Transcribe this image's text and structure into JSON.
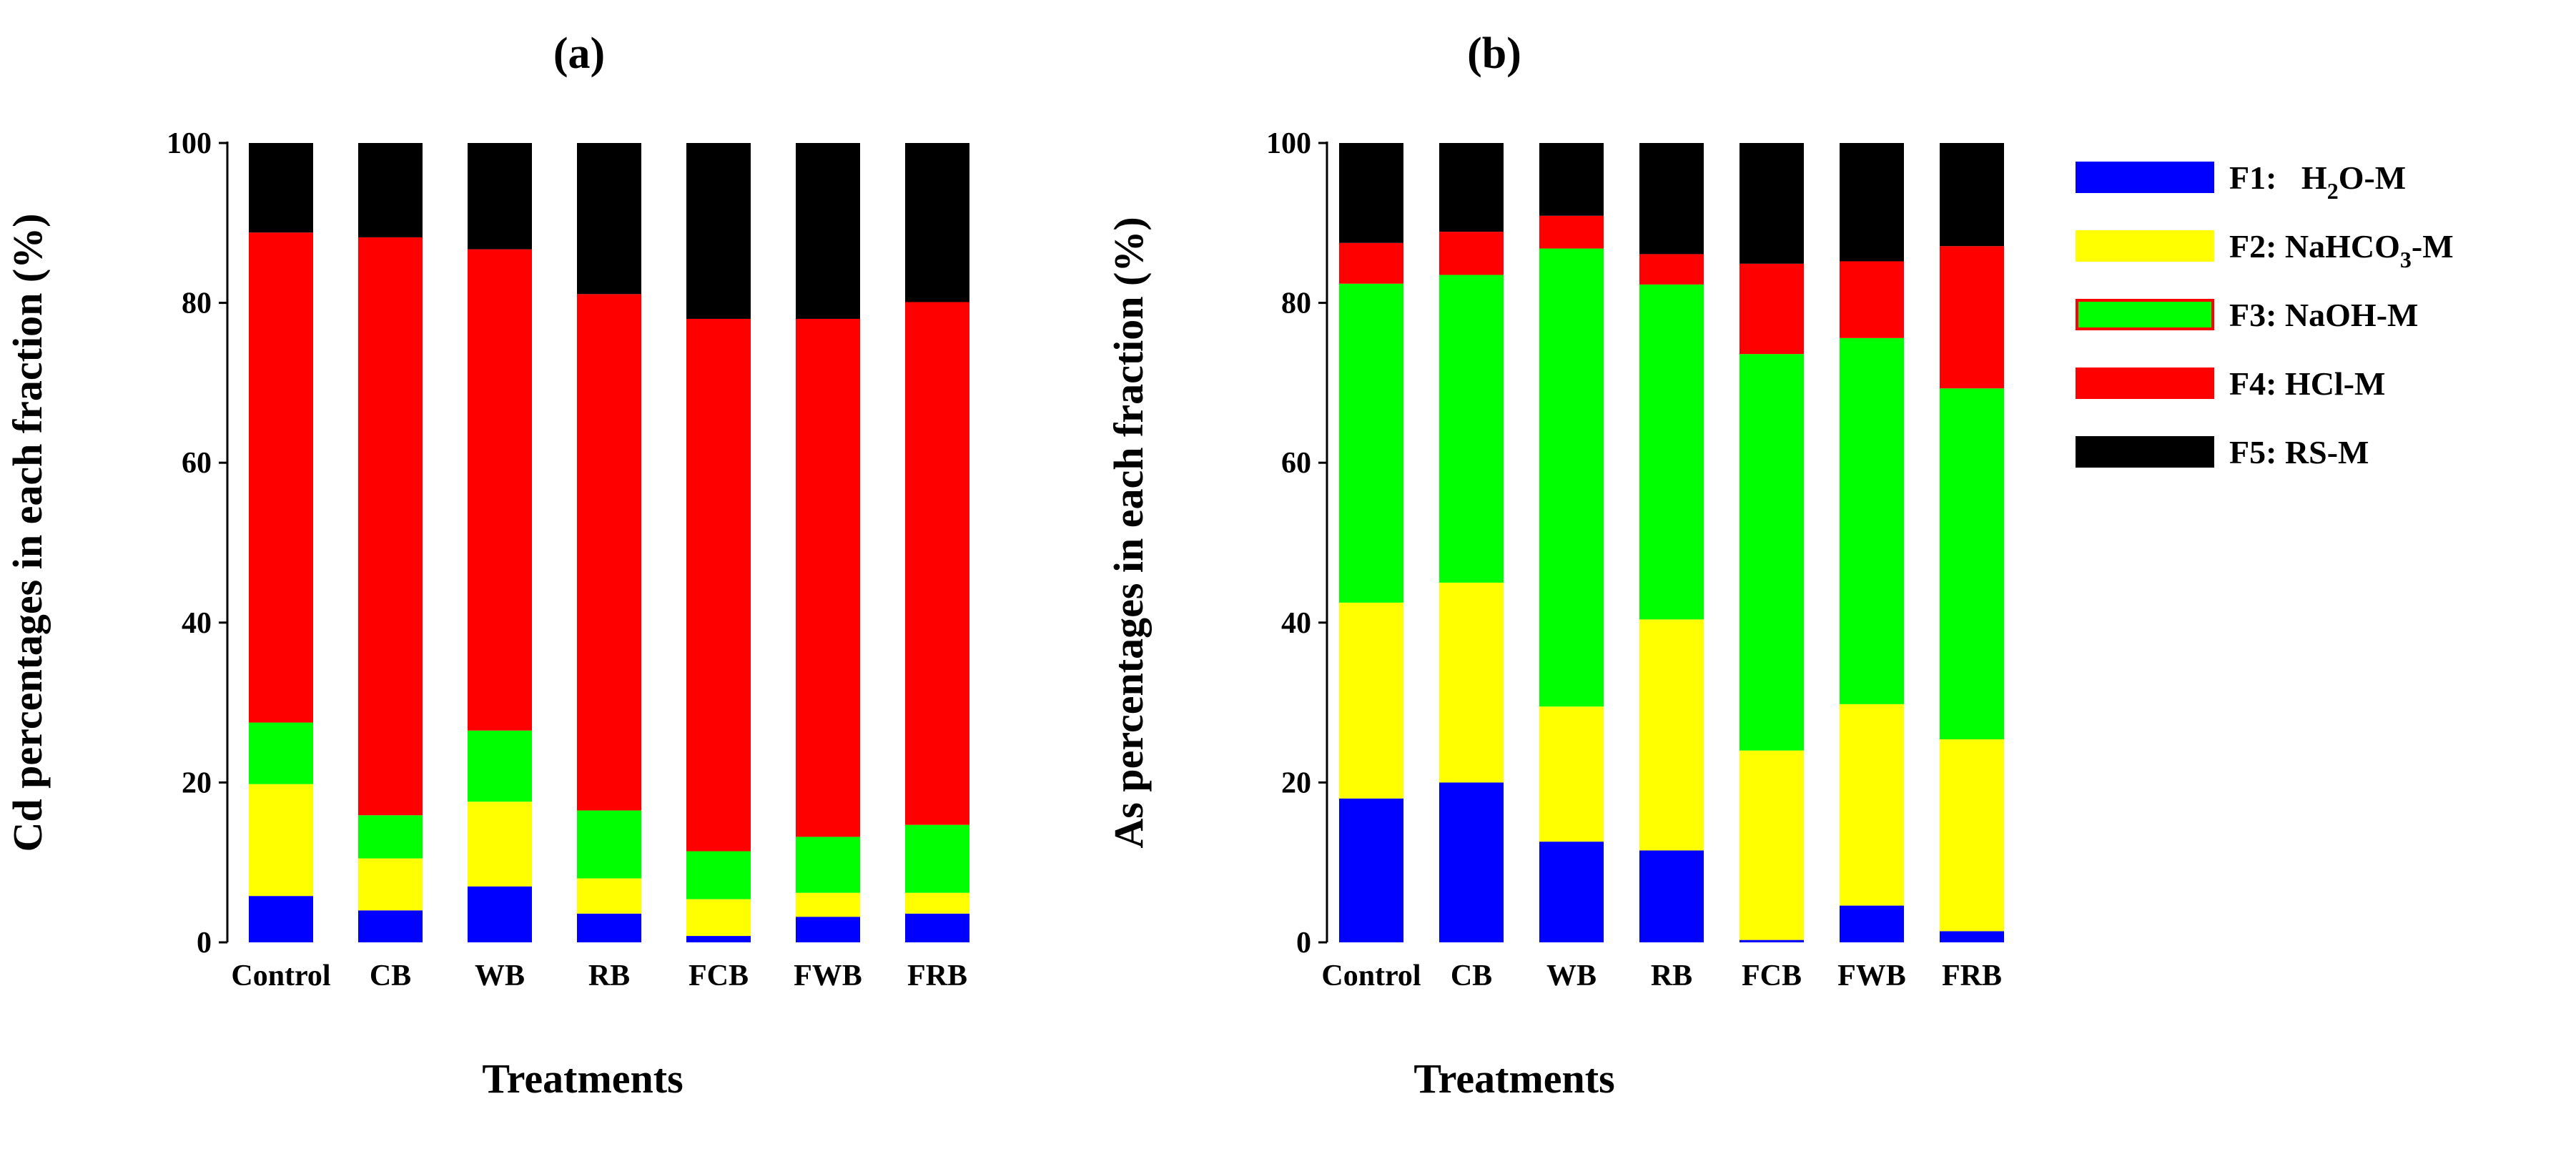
{
  "chart_data": [
    {
      "type": "bar",
      "stacked": true,
      "title": "(a)",
      "xlabel": "Treatments",
      "ylabel": "Cd percentages in each fraction (%)",
      "ylim": [
        0,
        100
      ],
      "yticks": [
        0,
        20,
        40,
        60,
        80,
        100
      ],
      "categories": [
        "Control",
        "CB",
        "WB",
        "RB",
        "FCB",
        "FWB",
        "FRB"
      ],
      "series": [
        {
          "name": "F1: H2O-M",
          "values": [
            5.8,
            4.0,
            7.0,
            3.6,
            0.8,
            3.2,
            3.6
          ]
        },
        {
          "name": "F2: NaHCO3-M",
          "values": [
            14.0,
            6.5,
            10.6,
            4.4,
            4.6,
            3.0,
            2.6
          ]
        },
        {
          "name": "F3: NaOH-M",
          "values": [
            7.7,
            5.4,
            8.9,
            8.5,
            6.0,
            7.0,
            8.5
          ]
        },
        {
          "name": "F4: HCl-M",
          "values": [
            61.3,
            72.3,
            60.2,
            64.6,
            66.6,
            64.8,
            65.4
          ]
        },
        {
          "name": "F5: RS-M",
          "values": [
            11.2,
            11.8,
            13.3,
            18.9,
            22.0,
            22.0,
            19.9
          ]
        }
      ]
    },
    {
      "type": "bar",
      "stacked": true,
      "title": "(b)",
      "xlabel": "Treatments",
      "ylabel": "As percentages in each fraction (%)",
      "ylim": [
        0,
        100
      ],
      "yticks": [
        0,
        20,
        40,
        60,
        80,
        100
      ],
      "categories": [
        "Control",
        "CB",
        "WB",
        "RB",
        "FCB",
        "FWB",
        "FRB"
      ],
      "series": [
        {
          "name": "F1: H2O-M",
          "values": [
            18.0,
            20.0,
            12.6,
            11.5,
            0.3,
            4.6,
            1.4
          ]
        },
        {
          "name": "F2: NaHCO3-M",
          "values": [
            24.5,
            25.0,
            16.9,
            28.9,
            23.7,
            25.2,
            24.0
          ]
        },
        {
          "name": "F3: NaOH-M",
          "values": [
            39.9,
            38.5,
            57.3,
            41.9,
            49.6,
            45.8,
            43.9
          ]
        },
        {
          "name": "F4: HCl-M",
          "values": [
            5.1,
            5.4,
            4.1,
            3.8,
            11.3,
            9.6,
            17.8
          ]
        },
        {
          "name": "F5: RS-M",
          "values": [
            12.5,
            11.1,
            9.1,
            13.9,
            15.1,
            14.8,
            12.9
          ]
        }
      ]
    }
  ],
  "legend": {
    "placement": "right",
    "items": [
      {
        "prefix": "F1:",
        "main": "H",
        "sub": "2",
        "post": "O-M",
        "color": "#0000ff",
        "outline": "#0000ff"
      },
      {
        "prefix": "F2:",
        "main": "NaHCO",
        "sub": "3",
        "post": "-M",
        "color": "#ffff00",
        "outline": "#ffff00"
      },
      {
        "prefix": "F3:",
        "main": "NaOH-M",
        "sub": "",
        "post": "",
        "color": "#00ff00",
        "outline": "#ff0000"
      },
      {
        "prefix": "F4:",
        "main": "HCl-M",
        "sub": "",
        "post": "",
        "color": "#ff0000",
        "outline": "#ff0000"
      },
      {
        "prefix": "F5:",
        "main": "RS-M",
        "sub": "",
        "post": "",
        "color": "#000000",
        "outline": "#000000"
      }
    ]
  },
  "colors": {
    "F1": "#0000ff",
    "F2": "#ffff00",
    "F3": "#00ff00",
    "F4": "#ff0000",
    "F5": "#000000"
  }
}
